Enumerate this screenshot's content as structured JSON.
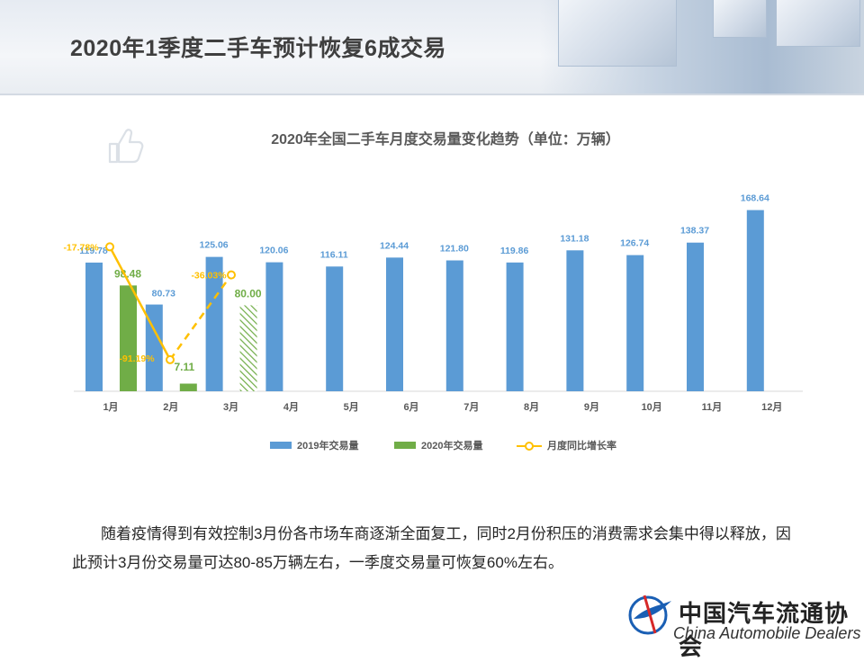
{
  "page": {
    "title": "2020年1季度二手车预计恢复6成交易",
    "paragraph": "随着疫情得到有效控制3月份各市场车商逐渐全面复工，同时2月份积压的消费需求会集中得以释放，因此预计3月份交易量可达80-85万辆左右，一季度交易量可恢复60%左右。"
  },
  "logo": {
    "name_cn": "中国汽车流通协会",
    "name_en": "China Automobile Dealers"
  },
  "colors": {
    "s2019": "#5b9bd5",
    "s2020": "#70ad47",
    "growth": "#ffc000",
    "title": "#595959"
  },
  "icons": [
    "thumbs-up-icon",
    "association-logo-icon"
  ],
  "chart_data": {
    "type": "bar",
    "title": "2020年全国二手车月度交易量变化趋势（单位：万辆）",
    "categories": [
      "1月",
      "2月",
      "3月",
      "4月",
      "5月",
      "6月",
      "7月",
      "8月",
      "9月",
      "10月",
      "11月",
      "12月"
    ],
    "series": [
      {
        "name": "2019年交易量",
        "type": "bar",
        "values": [
          119.78,
          80.73,
          125.06,
          120.06,
          116.11,
          124.44,
          121.8,
          119.86,
          131.18,
          126.74,
          138.37,
          168.64
        ],
        "labels": [
          "119.78",
          "80.73",
          "125.06",
          "120.06",
          "116.11",
          "124.44",
          "121.80",
          "119.86",
          "131.18",
          "126.74",
          "138.37",
          "168.64"
        ]
      },
      {
        "name": "2020年交易量",
        "type": "bar",
        "values": [
          98.48,
          7.11,
          80.0,
          null,
          null,
          null,
          null,
          null,
          null,
          null,
          null,
          null
        ],
        "labels": [
          "98.48",
          "7.11",
          "80.00"
        ],
        "estimated": [
          false,
          false,
          true
        ]
      },
      {
        "name": "月度同比增长率",
        "type": "line",
        "values": [
          -17.78,
          -91.19,
          -36.03,
          null,
          null,
          null,
          null,
          null,
          null,
          null,
          null,
          null
        ],
        "labels": [
          "-17.78%",
          "-91.19%",
          "-36.03%"
        ],
        "estimated_segment": [
          2,
          3
        ]
      }
    ],
    "ylim": [
      0,
      180
    ],
    "grid": false,
    "legend": "bottom"
  }
}
